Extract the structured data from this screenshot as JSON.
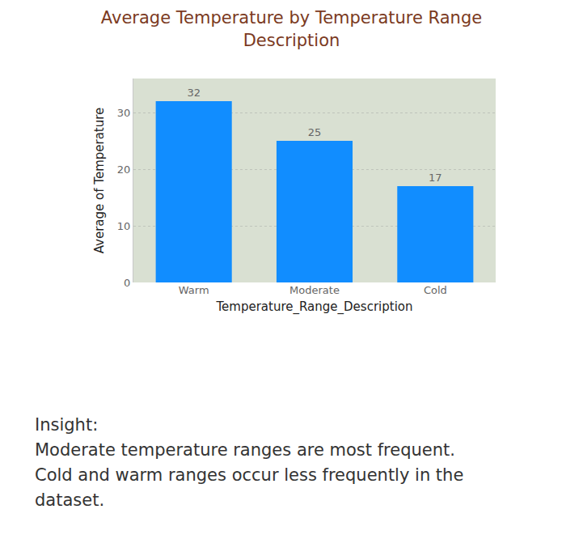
{
  "chart_data": {
    "type": "bar",
    "title": "Average Temperature by Temperature Range Description",
    "x_label": "Temperature_Range_Description",
    "y_label": "Average of Temperature",
    "categories": [
      "Warm",
      "Moderate",
      "Cold"
    ],
    "values": [
      32,
      25,
      17
    ],
    "color": "#118dff",
    "ylim": [
      0,
      36
    ],
    "yticks": [
      0,
      10,
      20,
      30
    ],
    "grid": true,
    "data_labels": true,
    "annotations": [
      "Insight:",
      "Moderate temperature ranges are most frequent. Cold and warm ranges occur less frequently in the dataset."
    ]
  }
}
